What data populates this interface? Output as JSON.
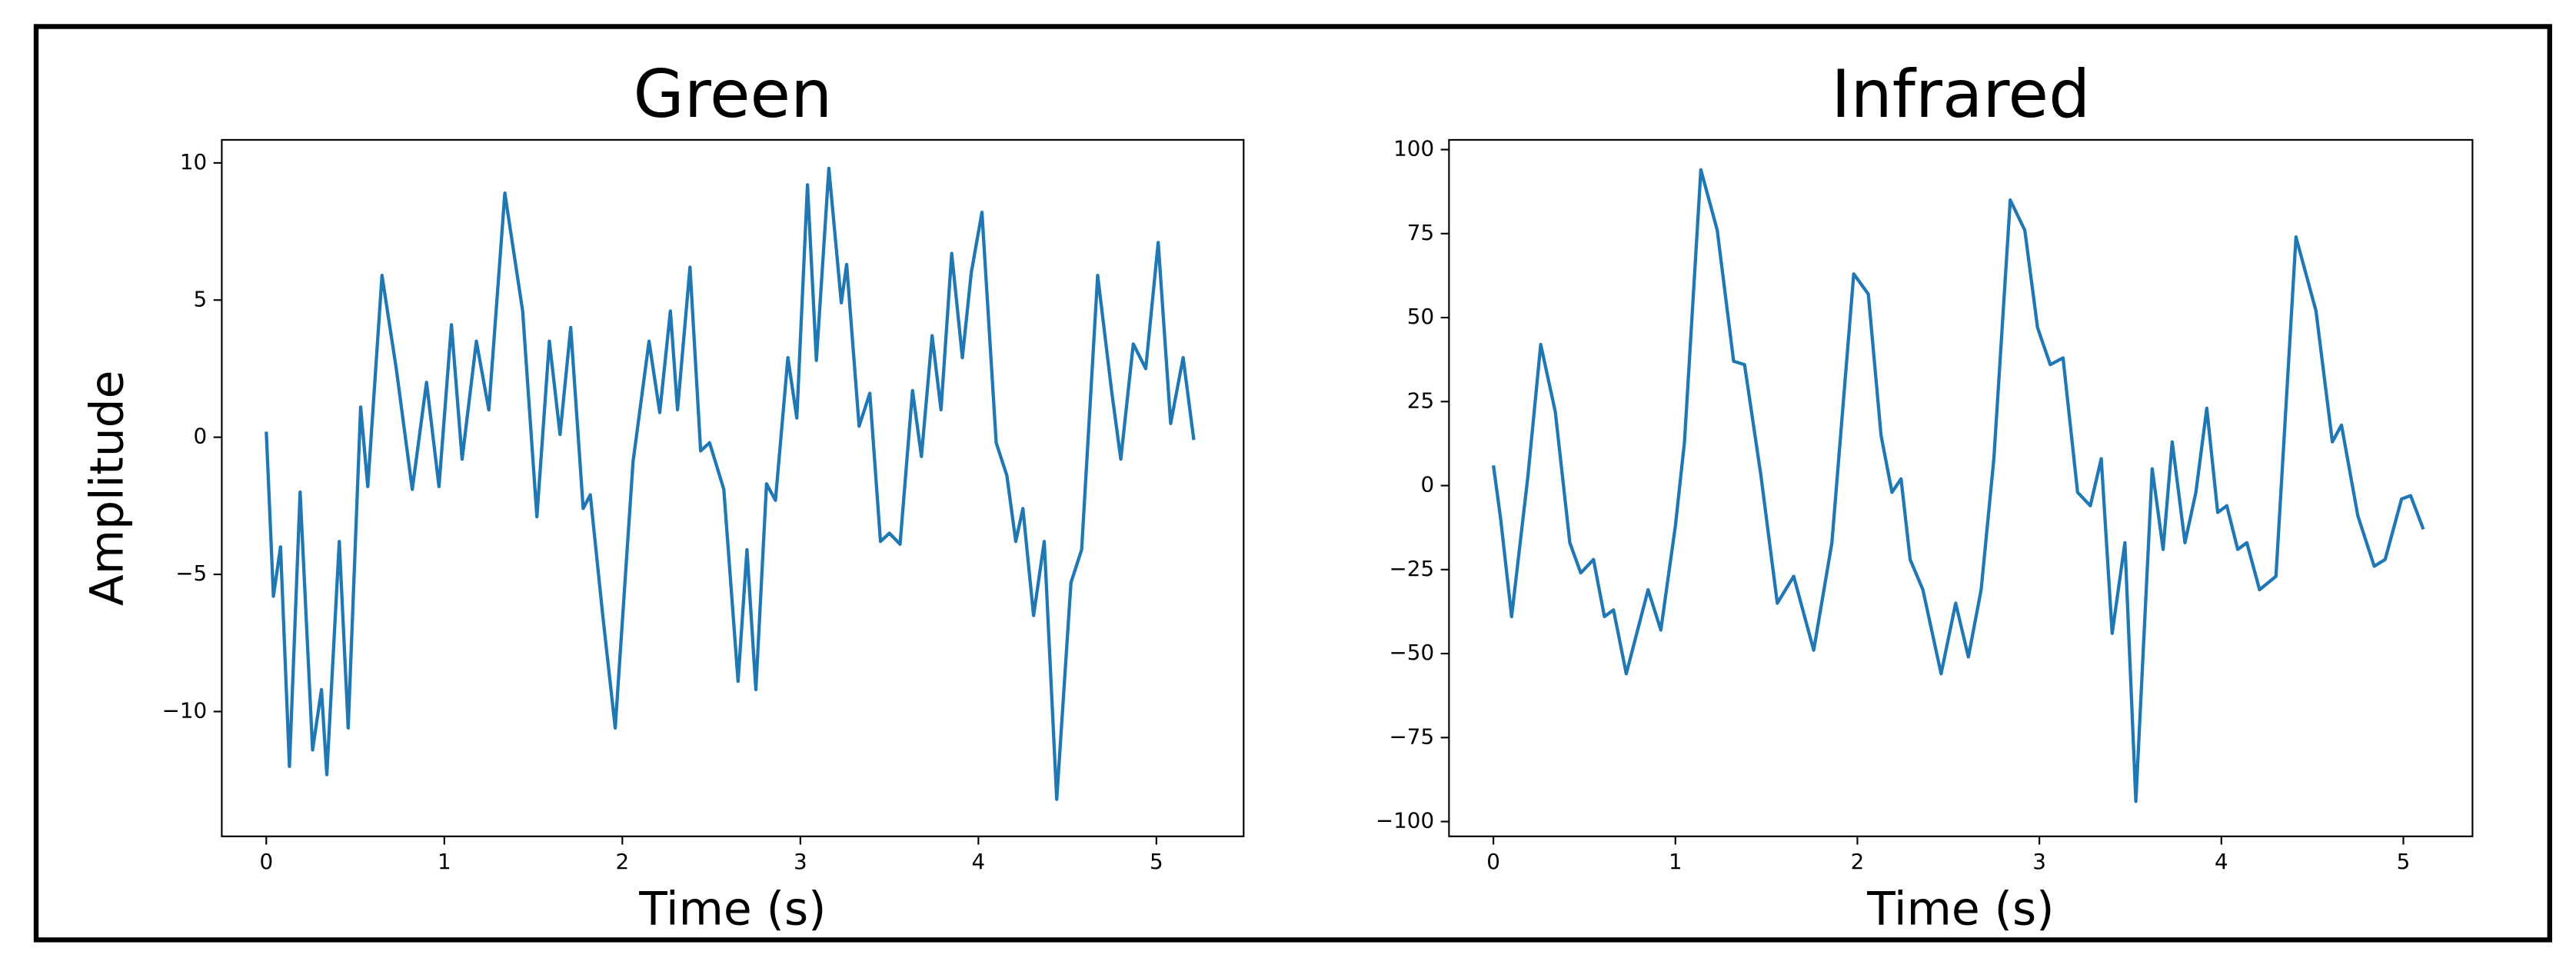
{
  "chart_data": [
    {
      "type": "line",
      "title": "Green",
      "xlabel": "Time (s)",
      "ylabel": "Amplitude",
      "color": "#1f77b4",
      "x": [
        0.0,
        0.04,
        0.08,
        0.13,
        0.19,
        0.26,
        0.31,
        0.34,
        0.41,
        0.46,
        0.53,
        0.57,
        0.65,
        0.73,
        0.82,
        0.9,
        0.97,
        1.04,
        1.1,
        1.18,
        1.25,
        1.34,
        1.44,
        1.52,
        1.59,
        1.65,
        1.71,
        1.78,
        1.82,
        1.89,
        1.96,
        2.06,
        2.15,
        2.21,
        2.27,
        2.31,
        2.38,
        2.44,
        2.49,
        2.57,
        2.65,
        2.7,
        2.75,
        2.81,
        2.86,
        2.93,
        2.98,
        3.04,
        3.09,
        3.16,
        3.23,
        3.26,
        3.33,
        3.39,
        3.45,
        3.5,
        3.56,
        3.63,
        3.68,
        3.74,
        3.79,
        3.85,
        3.91,
        3.96,
        4.02,
        4.1,
        4.16,
        4.21,
        4.25,
        4.31,
        4.37,
        4.44,
        4.52,
        4.58,
        4.67,
        4.75,
        4.8,
        4.87,
        4.94,
        5.01,
        5.08,
        5.15,
        5.21
      ],
      "values": [
        0.2,
        -5.8,
        -4,
        -12,
        -2,
        -11.4,
        -9.2,
        -12.3,
        -3.8,
        -10.6,
        1.1,
        -1.8,
        5.9,
        2.5,
        -1.9,
        2.0,
        -1.8,
        4.1,
        -0.8,
        3.5,
        1.0,
        8.9,
        4.6,
        -2.9,
        3.5,
        0.1,
        4.0,
        -2.6,
        -2.1,
        -6.5,
        -10.6,
        -0.9,
        3.5,
        0.9,
        4.6,
        1.0,
        6.2,
        -0.5,
        -0.2,
        -1.9,
        -8.9,
        -4.1,
        -9.2,
        -1.7,
        -2.3,
        2.9,
        0.7,
        9.2,
        2.8,
        9.8,
        4.9,
        6.3,
        0.4,
        1.6,
        -3.8,
        -3.5,
        -3.9,
        1.7,
        -0.7,
        3.7,
        1.0,
        6.7,
        2.9,
        6.0,
        8.2,
        -0.2,
        -1.4,
        -3.8,
        -2.6,
        -6.5,
        -3.8,
        -13.2,
        -5.3,
        -4.1,
        5.9,
        1.6,
        -0.8,
        3.4,
        2.5,
        7.1,
        0.5,
        2.9,
        -0.1
      ],
      "xlim": [
        -0.25,
        5.49
      ],
      "ylim": [
        -14.55,
        10.84
      ],
      "xticks": [
        0,
        1,
        2,
        3,
        4,
        5
      ],
      "yticks": [
        {
          "value": -10,
          "label": "−10"
        },
        {
          "value": -5,
          "label": "−5"
        },
        0,
        5,
        10
      ],
      "grid": false
    },
    {
      "type": "line",
      "title": "Infrared",
      "xlabel": "Time (s)",
      "color": "#1f77b4",
      "x": [
        0.0,
        0.04,
        0.1,
        0.19,
        0.26,
        0.34,
        0.42,
        0.48,
        0.55,
        0.61,
        0.66,
        0.73,
        0.85,
        0.92,
        1.0,
        1.05,
        1.14,
        1.23,
        1.32,
        1.38,
        1.47,
        1.56,
        1.65,
        1.76,
        1.86,
        1.98,
        2.06,
        2.13,
        2.19,
        2.24,
        2.29,
        2.36,
        2.46,
        2.54,
        2.61,
        2.68,
        2.75,
        2.84,
        2.92,
        2.99,
        3.06,
        3.13,
        3.21,
        3.28,
        3.34,
        3.4,
        3.47,
        3.53,
        3.62,
        3.68,
        3.73,
        3.8,
        3.86,
        3.92,
        3.98,
        4.03,
        4.09,
        4.14,
        4.21,
        4.3,
        4.41,
        4.52,
        4.61,
        4.66,
        4.75,
        4.84,
        4.9,
        4.99,
        5.04,
        5.11
      ],
      "values": [
        6,
        -10,
        -39,
        3,
        42,
        22,
        -17,
        -26,
        -22,
        -39,
        -37,
        -56,
        -31,
        -43,
        -12,
        13,
        94,
        76,
        37,
        36,
        3,
        -35,
        -27,
        -49,
        -17,
        63,
        57,
        15,
        -2,
        2,
        -22,
        -31,
        -56,
        -35,
        -51,
        -31,
        8,
        85,
        76,
        47,
        36,
        38,
        -2,
        -6,
        8,
        -44,
        -17,
        -94,
        5,
        -19,
        13,
        -17,
        -2,
        23,
        -8,
        -6,
        -19,
        -17,
        -31,
        -27,
        74,
        52,
        13,
        18,
        -9,
        -24,
        -22,
        -4,
        -3,
        -13
      ],
      "xlim": [
        -0.244,
        5.38
      ],
      "ylim": [
        -104.4,
        102.9
      ],
      "xticks": [
        0,
        1,
        2,
        3,
        4,
        5
      ],
      "yticks": [
        {
          "value": -100,
          "label": "−100"
        },
        {
          "value": -75,
          "label": "−75"
        },
        {
          "value": -50,
          "label": "−50"
        },
        {
          "value": -25,
          "label": "−25"
        },
        0,
        25,
        50,
        75,
        100
      ],
      "grid": false
    }
  ]
}
